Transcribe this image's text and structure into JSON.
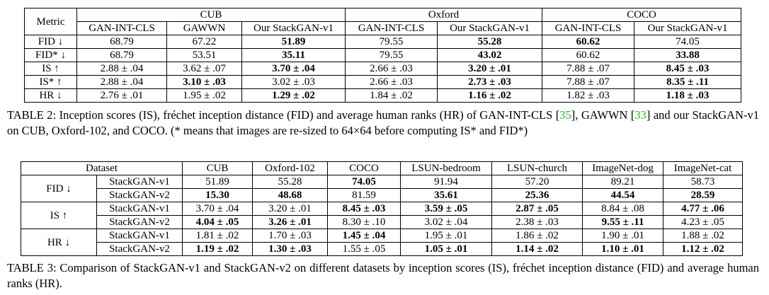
{
  "table2": {
    "metric_header": "Metric",
    "groups": [
      "CUB",
      "Oxford",
      "COCO"
    ],
    "subheaders": [
      "GAN-INT-CLS",
      "GAWWN",
      "Our StackGAN-v1",
      "GAN-INT-CLS",
      "Our StackGAN-v1",
      "GAN-INT-CLS",
      "Our StackGAN-v1"
    ],
    "rows": [
      {
        "label": "FID ↓",
        "cells": [
          "68.79",
          "67.22",
          "51.89",
          "79.55",
          "55.28",
          "60.62",
          "74.05"
        ]
      },
      {
        "label": "FID* ↓",
        "cells": [
          "68.79",
          "53.51",
          "35.11",
          "79.55",
          "43.02",
          "60.62",
          "33.88"
        ]
      },
      {
        "label": "IS ↑",
        "cells": [
          "2.88 ± .04",
          "3.62 ± .07",
          "3.70 ± .04",
          "2.66 ± .03",
          "3.20 ± .01",
          "7.88 ± .07",
          "8.45 ± .03"
        ]
      },
      {
        "label": "IS* ↑",
        "cells": [
          "2.88 ± .04",
          "3.10 ± .03",
          "3.02 ± .03",
          "2.66 ± .03",
          "2.73 ± .03",
          "7.88 ± .07",
          "8.35 ± .11"
        ]
      },
      {
        "label": "HR ↓",
        "cells": [
          "2.76 ± .01",
          "1.95 ± .02",
          "1.29 ± .02",
          "1.84 ± .02",
          "1.16 ± .02",
          "1.82 ± .03",
          "1.18 ± .03"
        ]
      }
    ],
    "caption": {
      "part1": "TABLE 2: Inception scores (IS), fréchet inception distance (FID) and average human ranks (HR) of GAN-INT-CLS [",
      "ref1": "35",
      "part2": "], GAWWN [",
      "ref2": "33",
      "part3": "] and our StackGAN-v1 on CUB, Oxford-102, and COCO. (* means that images are re-sized to 64×64 before computing IS* and FID*)"
    }
  },
  "table3": {
    "dataset_header": "Dataset",
    "columns": [
      "CUB",
      "Oxford-102",
      "COCO",
      "LSUN-bedroom",
      "LSUN-church",
      "ImageNet-dog",
      "ImageNet-cat"
    ],
    "groups": [
      {
        "metric": "FID ↓",
        "rows": [
          {
            "model": "StackGAN-v1",
            "cells": [
              "51.89",
              "55.28",
              "74.05",
              "91.94",
              "57.20",
              "89.21",
              "58.73"
            ]
          },
          {
            "model": "StackGAN-v2",
            "cells": [
              "15.30",
              "48.68",
              "81.59",
              "35.61",
              "25.36",
              "44.54",
              "28.59"
            ]
          }
        ]
      },
      {
        "metric": "IS ↑",
        "rows": [
          {
            "model": "StackGAN-v1",
            "cells": [
              "3.70 ± .04",
              "3.20 ± .01",
              "8.45 ± .03",
              "3.59 ± .05",
              "2.87 ± .05",
              "8.84 ± .08",
              "4.77 ± .06"
            ]
          },
          {
            "model": "StackGAN-v2",
            "cells": [
              "4.04 ± .05",
              "3.26 ± .01",
              "8.30 ± .10",
              "3.02 ± .04",
              "2.38 ± .03",
              "9.55 ± .11",
              "4.23 ± .05"
            ]
          }
        ]
      },
      {
        "metric": "HR ↓",
        "rows": [
          {
            "model": "StackGAN-v1",
            "cells": [
              "1.81 ± .02",
              "1.70 ± .03",
              "1.45 ± .04",
              "1.95 ± .01",
              "1.86 ± .02",
              "1.90 ± .01",
              "1.88 ± .02"
            ]
          },
          {
            "model": "StackGAN-v2",
            "cells": [
              "1.19 ± .02",
              "1.30 ± .03",
              "1.55 ± .05",
              "1.05 ± .01",
              "1.14 ± .02",
              "1.10 ± .01",
              "1.12 ± .02"
            ]
          }
        ]
      }
    ],
    "caption": "TABLE 3: Comparison of StackGAN-v1 and StackGAN-v2 on different datasets by inception scores (IS), fréchet inception distance (FID) and average human ranks (HR)."
  }
}
